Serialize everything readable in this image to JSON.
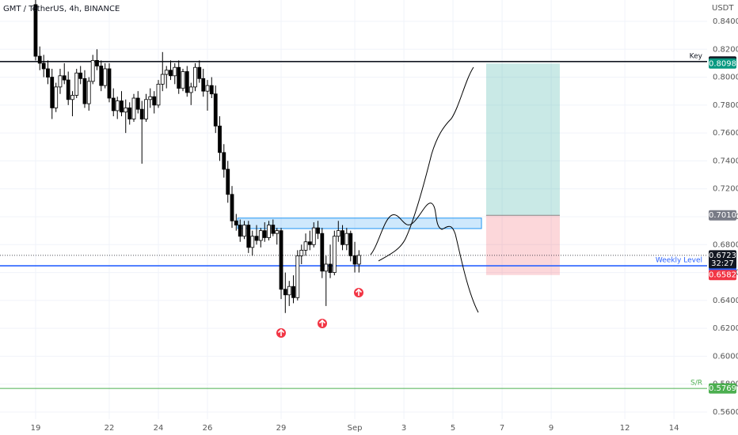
{
  "chart_data": {
    "type": "candlestick",
    "title": "GMT / TetherUS, 4h, BINANCE",
    "y_axis_label": "USDT",
    "xlim": [
      17.55,
      46.35
    ],
    "ylim": [
      0.5549,
      0.8553
    ],
    "xticks": [
      19,
      22,
      24,
      26,
      29,
      {
        "value": 32,
        "label": "Sep"
      },
      {
        "value": 34,
        "label": "3"
      },
      {
        "value": 36,
        "label": "5"
      },
      {
        "value": 38,
        "label": "7"
      },
      {
        "value": 40,
        "label": "9"
      },
      {
        "value": 43,
        "label": "12"
      },
      {
        "value": 45,
        "label": "14"
      }
    ],
    "yticks": [
      {
        "value": 0.56,
        "label": "0.5600"
      },
      {
        "value": 0.58,
        "label": "0.5800"
      },
      {
        "value": 0.6,
        "label": "0.6000"
      },
      {
        "value": 0.62,
        "label": "0.6200"
      },
      {
        "value": 0.64,
        "label": "0.6400"
      },
      {
        "value": 0.66,
        "label": "0.6600"
      },
      {
        "value": 0.68,
        "label": "0.6800"
      },
      {
        "value": 0.7,
        "label": "0.7000"
      },
      {
        "value": 0.72,
        "label": "0.7200"
      },
      {
        "value": 0.74,
        "label": "0.7400"
      },
      {
        "value": 0.76,
        "label": "0.7600"
      },
      {
        "value": 0.78,
        "label": "0.7800"
      },
      {
        "value": 0.8,
        "label": "0.8000"
      },
      {
        "value": 0.82,
        "label": "0.8200"
      },
      {
        "value": 0.84,
        "label": "0.8400"
      }
    ],
    "grid": true,
    "up_color": "#ffffff",
    "down_color": "#000000",
    "x": [
      19,
      19.17,
      19.33,
      19.5,
      19.67,
      19.83,
      20,
      20.17,
      20.33,
      20.5,
      20.67,
      20.83,
      21,
      21.17,
      21.33,
      21.5,
      21.67,
      21.83,
      22,
      22.17,
      22.33,
      22.5,
      22.67,
      22.83,
      23,
      23.17,
      23.33,
      23.5,
      23.67,
      23.83,
      24,
      24.17,
      24.33,
      24.5,
      24.67,
      24.83,
      25,
      25.17,
      25.33,
      25.5,
      25.67,
      25.83,
      26,
      26.17,
      26.33,
      26.5,
      26.67,
      26.83,
      27,
      27.17,
      27.33,
      27.5,
      27.67,
      27.83,
      28,
      28.17,
      28.33,
      28.5,
      28.67,
      28.83,
      29,
      29.17,
      29.33,
      29.5,
      29.67,
      29.83,
      30,
      30.17,
      30.33,
      30.5,
      30.67,
      30.83,
      31,
      31.17,
      31.33,
      31.5,
      31.67,
      31.83,
      32,
      32.17
    ],
    "open": [
      0.852,
      0.815,
      0.81,
      0.806,
      0.8,
      0.778,
      0.793,
      0.801,
      0.798,
      0.784,
      0.787,
      0.803,
      0.799,
      0.781,
      0.797,
      0.812,
      0.808,
      0.794,
      0.806,
      0.785,
      0.776,
      0.783,
      0.775,
      0.778,
      0.77,
      0.785,
      0.777,
      0.77,
      0.784,
      0.786,
      0.78,
      0.795,
      0.802,
      0.805,
      0.801,
      0.807,
      0.792,
      0.804,
      0.789,
      0.793,
      0.807,
      0.799,
      0.79,
      0.794,
      0.788,
      0.765,
      0.746,
      0.734,
      0.716,
      0.697,
      0.694,
      0.686,
      0.694,
      0.678,
      0.686,
      0.683,
      0.69,
      0.685,
      0.694,
      0.688,
      0.69,
      0.648,
      0.644,
      0.65,
      0.642,
      0.672,
      0.676,
      0.682,
      0.68,
      0.692,
      0.688,
      0.661,
      0.666,
      0.66,
      0.686,
      0.69,
      0.68,
      0.688,
      0.672,
      0.666
    ],
    "high": [
      0.856,
      0.822,
      0.816,
      0.812,
      0.806,
      0.796,
      0.806,
      0.81,
      0.804,
      0.79,
      0.806,
      0.808,
      0.805,
      0.8,
      0.816,
      0.82,
      0.812,
      0.81,
      0.81,
      0.792,
      0.786,
      0.79,
      0.784,
      0.782,
      0.788,
      0.79,
      0.783,
      0.788,
      0.792,
      0.79,
      0.798,
      0.818,
      0.808,
      0.812,
      0.81,
      0.812,
      0.806,
      0.808,
      0.796,
      0.81,
      0.812,
      0.806,
      0.798,
      0.8,
      0.794,
      0.772,
      0.752,
      0.74,
      0.722,
      0.702,
      0.698,
      0.697,
      0.697,
      0.69,
      0.694,
      0.692,
      0.696,
      0.697,
      0.698,
      0.692,
      0.692,
      0.66,
      0.654,
      0.658,
      0.676,
      0.68,
      0.688,
      0.69,
      0.696,
      0.697,
      0.692,
      0.672,
      0.68,
      0.69,
      0.697,
      0.694,
      0.692,
      0.69,
      0.682,
      0.676
    ],
    "low": [
      0.812,
      0.805,
      0.8,
      0.795,
      0.77,
      0.775,
      0.788,
      0.795,
      0.78,
      0.772,
      0.785,
      0.795,
      0.778,
      0.776,
      0.795,
      0.805,
      0.79,
      0.792,
      0.782,
      0.772,
      0.77,
      0.772,
      0.76,
      0.766,
      0.768,
      0.774,
      0.738,
      0.768,
      0.778,
      0.774,
      0.778,
      0.79,
      0.792,
      0.798,
      0.795,
      0.788,
      0.79,
      0.786,
      0.78,
      0.79,
      0.796,
      0.786,
      0.776,
      0.785,
      0.76,
      0.74,
      0.728,
      0.71,
      0.692,
      0.69,
      0.682,
      0.684,
      0.674,
      0.672,
      0.68,
      0.678,
      0.682,
      0.683,
      0.686,
      0.68,
      0.641,
      0.631,
      0.636,
      0.638,
      0.64,
      0.666,
      0.672,
      0.676,
      0.678,
      0.684,
      0.656,
      0.636,
      0.656,
      0.658,
      0.682,
      0.676,
      0.676,
      0.668,
      0.66,
      0.66
    ],
    "close": [
      0.815,
      0.81,
      0.806,
      0.8,
      0.778,
      0.793,
      0.801,
      0.798,
      0.784,
      0.787,
      0.803,
      0.799,
      0.781,
      0.797,
      0.812,
      0.808,
      0.794,
      0.806,
      0.785,
      0.776,
      0.783,
      0.775,
      0.778,
      0.77,
      0.785,
      0.777,
      0.77,
      0.784,
      0.786,
      0.78,
      0.795,
      0.802,
      0.805,
      0.801,
      0.807,
      0.792,
      0.804,
      0.789,
      0.793,
      0.807,
      0.799,
      0.79,
      0.794,
      0.788,
      0.765,
      0.746,
      0.734,
      0.716,
      0.697,
      0.694,
      0.686,
      0.694,
      0.678,
      0.686,
      0.683,
      0.69,
      0.685,
      0.694,
      0.688,
      0.69,
      0.648,
      0.644,
      0.65,
      0.642,
      0.672,
      0.676,
      0.682,
      0.68,
      0.692,
      0.688,
      0.661,
      0.666,
      0.66,
      0.686,
      0.69,
      0.68,
      0.688,
      0.672,
      0.666,
      0.6723
    ],
    "levels": [
      {
        "name": "Key",
        "value": 0.8112,
        "color": "#131722"
      },
      {
        "name": "Weekly Level",
        "value": 0.6648,
        "color": "#2962ff"
      },
      {
        "name": "S/R",
        "value": 0.5769,
        "color": "#4caf50"
      }
    ],
    "zone": {
      "x": [
        27.23,
        37.16
      ],
      "y": [
        0.6915,
        0.699
      ],
      "color": "#2196f3"
    },
    "position": {
      "x": [
        37.35,
        40.35
      ],
      "target": 0.8098,
      "entry": {
        "value": 0.701,
        "label": "0.7010"
      },
      "stop": 0.6582
    },
    "last_price": 0.6723,
    "countdown": "32:27"
  }
}
